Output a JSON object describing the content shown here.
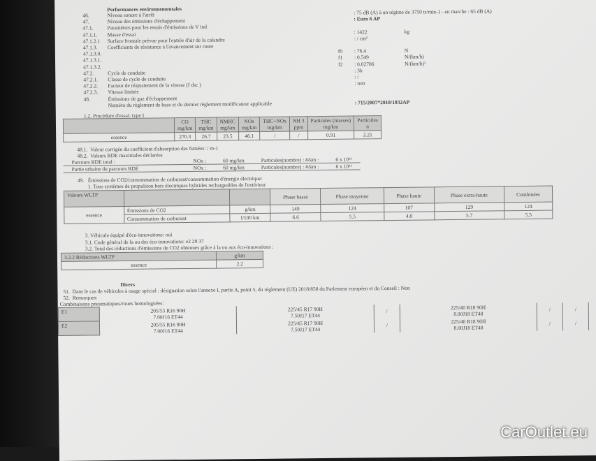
{
  "heading": "Performances environnementales",
  "rows": [
    {
      "num": "46.",
      "label": "Niveau sonore à l'arrêt",
      "value": ": 75 dB (A)  à un régime de 3750 tr/min-1 - en marche :  65 dB (A)"
    },
    {
      "num": "47.",
      "label": "Niveau des émissions d'échappement",
      "value": ": Euro 6 AP"
    },
    {
      "num": "47.1.",
      "label": "Paramètres pour les essais d'émissions de V ind",
      "value": ""
    },
    {
      "num": "47.1.1.",
      "label": "Masse d'essai",
      "value": ": 1422",
      "unit": "kg"
    },
    {
      "num": "47.1.2.1",
      "label": "Surface frontale prévue pour l'entrée d'air de la calandre",
      "value": ": / cm²"
    },
    {
      "num": "47.1.3.",
      "label": "Coefficients de résistance à l'avancement sur route",
      "value": ""
    },
    {
      "num": "47.1.3.0.",
      "label": "",
      "coef": "f0",
      "value": ": 76.4",
      "unit": "N"
    },
    {
      "num": "47.1.3.1.",
      "label": "",
      "coef": "f1",
      "value": ": 0.549",
      "unit": "N/(km/h)"
    },
    {
      "num": "47.1.3.2.",
      "label": "",
      "coef": "f2",
      "value": ": 0.02706",
      "unit": "N/(km/h)²"
    },
    {
      "num": "47.2.",
      "label": "Cycle de conduite",
      "value": ": 3b"
    },
    {
      "num": "47.2.1.",
      "label": "Classe de cycle de conduite",
      "value": ": /"
    },
    {
      "num": "47.2.2.",
      "label": "Facteur de réajustement de la vitesse (f dsc )",
      "value": ": non"
    },
    {
      "num": "47.2.3.",
      "label": "Vitesse limitée",
      "value": ""
    },
    {
      "num": "48.",
      "label": "Émissions de gaz d'échappement",
      "value": ""
    },
    {
      "num": "",
      "label": "Numéro du règlement de base et du dernier règlement modificateur applicable",
      "value": ": 715/2007*2018/1832AP"
    }
  ],
  "type1": {
    "caption": "1.2. Procédure d'essai: type I",
    "headers": [
      [
        "CO",
        "mg/km"
      ],
      [
        "THC",
        "mg/km"
      ],
      [
        "NMHC",
        "mg/km"
      ],
      [
        "NOx",
        "mg/km"
      ],
      [
        "THC+NOx",
        "mg/km"
      ],
      [
        "NH 3",
        "ppm"
      ],
      [
        "Particules (masses)",
        "mg/km"
      ],
      [
        "Particules",
        "n"
      ]
    ],
    "row_label": "essence",
    "values": [
      "270.3",
      "26.7",
      "23.5",
      "46.1",
      "/",
      "/",
      "0.91",
      "2.21"
    ]
  },
  "l481": {
    "num": "48.1.",
    "text": "Valeur corrigée du coefficient d'absorption des fumées: / m-1"
  },
  "l482": {
    "num": "48.2.",
    "text": "Valeurs RDE maximales déclarées"
  },
  "rde": [
    {
      "label": "Parcours RDE total :",
      "nox": "NOx :",
      "nox_val": "60 mg/km",
      "pn": "Particules(nombre) : #/km :",
      "pn_val": "6 x 10¹¹"
    },
    {
      "label": "Partie urbaine du parcours RDE",
      "nox": "NOx :",
      "nox_val": "60 mg/km",
      "pn": "Particules(nombre) : #/km :",
      "pn_val": "6 x 10¹¹"
    }
  ],
  "l49": {
    "num": "49.",
    "text": "Émissions de CO2/consommation de carburant/consommation d'énergie électrique:"
  },
  "l49_1": "1. Tous systèmes de propulsion hors électriques hybrides rechargeables de l'extérieur",
  "wltp": {
    "title": "Valeurs WLTP",
    "headers": [
      "Phase basse",
      "Phase moyenne",
      "Phase haute",
      "Phase extra-haute",
      "Combinées"
    ],
    "fuel": "essence",
    "rows": [
      {
        "label": "Émissions de CO2",
        "unit": "g/km",
        "values": [
          "149",
          "124",
          "107",
          "129",
          "124"
        ]
      },
      {
        "label": "Consommation de carburant",
        "unit": "l/100 km",
        "values": [
          "6.6",
          "5.5",
          "4.8",
          "5.7",
          "5.5"
        ]
      }
    ]
  },
  "eco": {
    "l3": "3. Véhicule équipé d'éco-innovations: oui",
    "l31": "3.1. Code général de la ou des éco-innovations: e2 29 37",
    "l32": "3.2. Total des réductions d'émissions de CO2 obtenues grâce à la ou aux éco-innovations :",
    "table_title": "3.2.2 Réductions WLTP",
    "unit": "g/km",
    "fuel": "essence",
    "value": "2.2"
  },
  "divers": {
    "title": "Divers",
    "l51_num": "51.",
    "l51": "Dans le cas de véhicules à usage spécial : désignation selon l'annexe I, partie A, point 5, du règlement (UE) 2018/858 du Parlement européen et du Conseil : Non",
    "l52_num": "52.",
    "l52": "Remarques:",
    "combos": "Combinaisons pneumatiques/roues homologuées:"
  },
  "tyres": [
    {
      "axle": "E1",
      "c1": [
        "205/55 R16 90H",
        "7.00J16 ET44"
      ],
      "c2": [
        "225/45 R17 90H",
        "7.50J17 ET44"
      ],
      "c3": "/",
      "c4": [
        "225/40 R18 90H",
        "8.00J18 ET48"
      ],
      "c5": "/",
      "c6": "/"
    },
    {
      "axle": "E2",
      "c1": [
        "205/55 R16 90H",
        "7.00J16 ET44"
      ],
      "c2": [
        "225/45 R17 90H",
        "7.50J17 ET44"
      ],
      "c3": "/",
      "c4": [
        "225/40 R18 90H",
        "8.00J18 ET48"
      ],
      "c5": "/",
      "c6": "/"
    }
  ],
  "watermark": "CarOutlet.eu"
}
